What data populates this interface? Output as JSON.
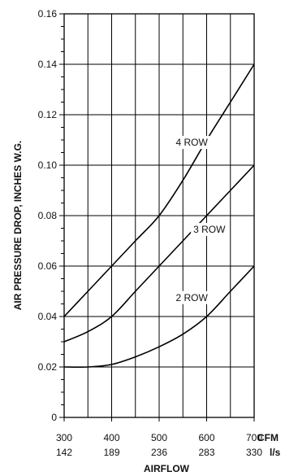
{
  "chart_data": {
    "type": "line",
    "title": "",
    "xlabel": "AIRFLOW",
    "ylabel": "AIR PRESSURE DROP, INCHES W.G.",
    "x_unit_primary": "CFM",
    "x_unit_secondary": "l/s",
    "xlim": [
      300,
      700
    ],
    "ylim": [
      0,
      0.16
    ],
    "x_ticks": [
      300,
      400,
      500,
      600,
      700
    ],
    "x_ticks_secondary": [
      "142",
      "189",
      "236",
      "283",
      "330"
    ],
    "y_ticks": [
      "0",
      "0.02",
      "0.04",
      "0.06",
      "0.08",
      "0.10",
      "0.12",
      "0.14",
      "0.16"
    ],
    "y_tick_values": [
      0,
      0.02,
      0.04,
      0.06,
      0.08,
      0.1,
      0.12,
      0.14,
      0.16
    ],
    "grid": true,
    "series": [
      {
        "name": "4 ROW",
        "x": [
          300,
          350,
          400,
          450,
          500,
          550,
          600,
          650,
          700
        ],
        "y": [
          0.04,
          0.05,
          0.06,
          0.07,
          0.08,
          0.094,
          0.11,
          0.125,
          0.14
        ]
      },
      {
        "name": "3 ROW",
        "x": [
          300,
          350,
          400,
          450,
          500,
          550,
          600,
          650,
          700
        ],
        "y": [
          0.03,
          0.034,
          0.04,
          0.05,
          0.06,
          0.07,
          0.08,
          0.09,
          0.1
        ]
      },
      {
        "name": "2 ROW",
        "x": [
          300,
          350,
          400,
          450,
          500,
          550,
          600,
          650,
          700
        ],
        "y": [
          0.02,
          0.02,
          0.021,
          0.024,
          0.028,
          0.033,
          0.04,
          0.05,
          0.06
        ]
      }
    ]
  }
}
